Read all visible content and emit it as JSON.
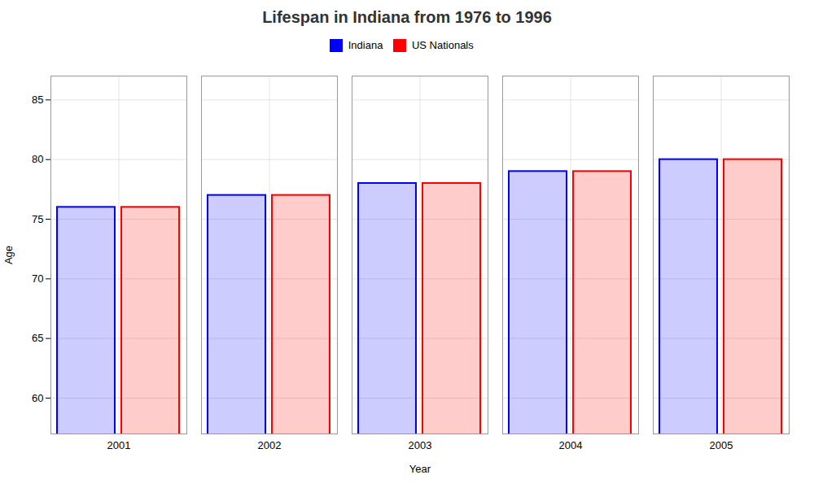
{
  "chart_data": {
    "type": "bar",
    "title": "Lifespan in Indiana from 1976 to 1996",
    "xlabel": "Year",
    "ylabel": "Age",
    "categories": [
      "2001",
      "2002",
      "2003",
      "2004",
      "2005"
    ],
    "series": [
      {
        "name": "Indiana",
        "color": "#0000ff",
        "values": [
          76,
          77,
          78,
          79,
          80
        ]
      },
      {
        "name": "US Nationals",
        "color": "#ff0000",
        "values": [
          76,
          77,
          78,
          79,
          80
        ]
      }
    ],
    "ylim": [
      57,
      87
    ],
    "yticks": [
      60,
      65,
      70,
      75,
      80,
      85
    ],
    "grid": true,
    "legend": "top"
  }
}
